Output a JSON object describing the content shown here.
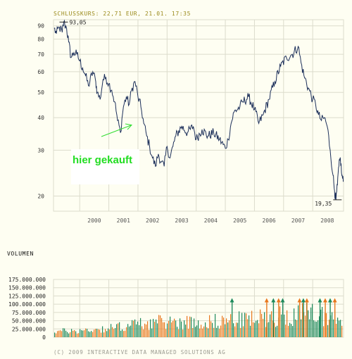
{
  "header": {
    "title": "SCHLUSSKURS: 22,71 EUR, 21.01. 17:35"
  },
  "volume_section": {
    "title": "VOLUMEN"
  },
  "footer": {
    "copyright": "(C) 2009 INTERACTIVE DATA MANAGED SOLUTIONS AG"
  },
  "note": {
    "text": "hier gekauft"
  },
  "colors": {
    "price_line": "#1c2f5a",
    "grid": "#dcdccc",
    "volume_up": "#1f8a5c",
    "volume_down": "#e8781e",
    "arrow": "#33dd33",
    "header": "#9a8a1c"
  },
  "chart_data": [
    {
      "type": "line",
      "scale": "log",
      "grid": true,
      "x_ticks": [
        "2000",
        "2001",
        "2002",
        "2003",
        "2004",
        "2005",
        "2006",
        "2007",
        "2008"
      ],
      "y_ticks": [
        "90",
        "80",
        "70",
        "60",
        "50",
        "40",
        "30",
        "20"
      ],
      "ylim": [
        17.5,
        95
      ],
      "xlim": [
        1999.1,
        2009.06
      ],
      "annotations": [
        {
          "label": "93,05",
          "x": 1999.45,
          "y": 93.05,
          "kind": "high"
        },
        {
          "label": "19,35",
          "x": 2008.85,
          "y": 19.35,
          "kind": "low"
        }
      ],
      "series": [
        {
          "x": [
            1999.12,
            1999.2,
            1999.3,
            1999.4,
            1999.45,
            1999.55,
            1999.62,
            1999.7,
            1999.8,
            1999.9,
            2000.0,
            2000.1,
            2000.2,
            2000.3,
            2000.45,
            2000.55,
            2000.6,
            2000.7,
            2000.8,
            2000.9,
            2001.0,
            2001.1,
            2001.2,
            2001.3,
            2001.4,
            2001.5,
            2001.6,
            2001.7,
            2001.8,
            2001.9,
            2002.0,
            2002.1,
            2002.2,
            2002.3,
            2002.4,
            2002.5,
            2002.6,
            2002.7,
            2002.8,
            2002.9,
            2003.0,
            2003.1,
            2003.2,
            2003.3,
            2003.5,
            2003.7,
            2003.9,
            2004.0,
            2004.2,
            2004.4,
            2004.6,
            2004.8,
            2005.0,
            2005.1,
            2005.2,
            2005.3,
            2005.5,
            2005.6,
            2005.8,
            2006.0,
            2006.15,
            2006.3,
            2006.5,
            2006.7,
            2006.9,
            2007.1,
            2007.3,
            2007.5,
            2007.6,
            2007.7,
            2007.85,
            2008.0,
            2008.1,
            2008.2,
            2008.3,
            2008.4,
            2008.5,
            2008.6,
            2008.7,
            2008.75,
            2008.8,
            2008.85,
            2008.9,
            2008.95,
            2009.0,
            2009.05
          ],
          "y": [
            88,
            84,
            89,
            85,
            93.05,
            88,
            78,
            68,
            71,
            70,
            66,
            62,
            58,
            53,
            60,
            55,
            50,
            47,
            56,
            57,
            54,
            51,
            46,
            39,
            35,
            44,
            48,
            45,
            52,
            55,
            48,
            44,
            38,
            34,
            31,
            28,
            26,
            29,
            27,
            26,
            31,
            28,
            31,
            34,
            37,
            35,
            37,
            33,
            36,
            34,
            35,
            33,
            30.5,
            33,
            38,
            42,
            44,
            46,
            48,
            43,
            38,
            41,
            47,
            55,
            63,
            68,
            70,
            75,
            65,
            58,
            52,
            47,
            45,
            41,
            39,
            40,
            37,
            30,
            24,
            21,
            19.35,
            22,
            26,
            28,
            24,
            22.7
          ]
        }
      ]
    },
    {
      "type": "bar",
      "y_ticks": [
        "175.000.000",
        "150.000.000",
        "125.000.000",
        "100.000.000",
        "75.000.000",
        "50.000.000",
        "25.000.000",
        "0"
      ],
      "ylim": [
        0,
        175000000
      ],
      "xlim": [
        1999.1,
        2009.06
      ],
      "grid": true,
      "series": [
        {
          "name": "volume"
        }
      ],
      "profile": {
        "x": [
          1999.1,
          2000.0,
          2001.0,
          2002.0,
          2003.0,
          2004.0,
          2005.0,
          2006.0,
          2007.0,
          2008.0,
          2009.06
        ],
        "y": [
          20000000,
          22000000,
          30000000,
          45000000,
          52000000,
          50000000,
          55000000,
          62000000,
          72000000,
          80000000,
          60000000
        ]
      },
      "spikes": [
        {
          "x": 2005.23,
          "label": ""
        },
        {
          "x": 2006.42,
          "label": ""
        },
        {
          "x": 2006.65,
          "label": ""
        },
        {
          "x": 2006.83,
          "label": ""
        },
        {
          "x": 2006.97,
          "label": ""
        },
        {
          "x": 2007.55,
          "label": ""
        },
        {
          "x": 2007.68,
          "label": ""
        },
        {
          "x": 2007.8,
          "label": ""
        },
        {
          "x": 2008.25,
          "label": ""
        },
        {
          "x": 2008.43,
          "label": ""
        },
        {
          "x": 2008.6,
          "label": ""
        },
        {
          "x": 2008.76,
          "label": ""
        }
      ]
    }
  ]
}
